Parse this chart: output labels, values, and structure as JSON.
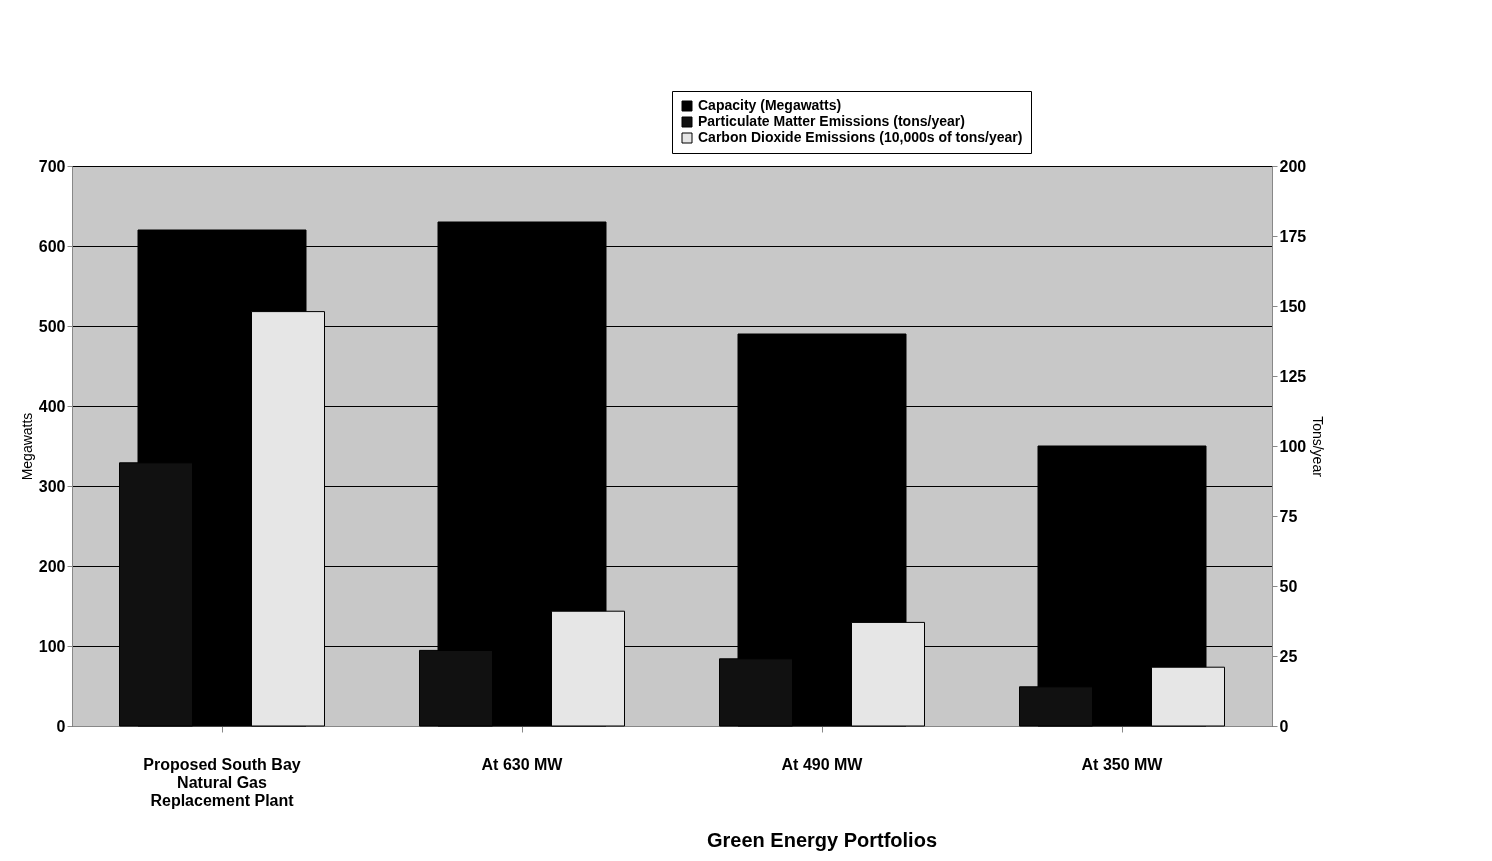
{
  "chart_data": {
    "type": "bar",
    "categories": [
      "Proposed South Bay\nNatural Gas\nReplacement Plant",
      "At 630 MW",
      "At 490 MW",
      "At 350 MW"
    ],
    "series": [
      {
        "name": "Capacity (Megawatts)",
        "color": "#000000",
        "values": [
          620,
          630,
          490,
          350
        ]
      },
      {
        "name": "Particulate Matter Emissions (tons/year)",
        "color": "#111111",
        "values": [
          94,
          27,
          24,
          14
        ],
        "axis": "y2"
      },
      {
        "name": "Carbon Dioxide Emissions (10,000s of tons/year)",
        "color": "#e6e6e6",
        "values": [
          148,
          41,
          37,
          21
        ],
        "axis": "y2"
      }
    ],
    "ylabel": "Megawatts",
    "y2label": "Tons/year",
    "ylim": [
      0,
      700
    ],
    "yticks": [
      0,
      100,
      200,
      300,
      400,
      500,
      600,
      700
    ],
    "y2lim": [
      0,
      200
    ],
    "y2ticks": [
      0,
      25,
      50,
      75,
      100,
      125,
      150,
      175,
      200
    ],
    "grid": "y",
    "legend": "top right",
    "annotations": [
      "Green Energy Portfolios"
    ]
  }
}
